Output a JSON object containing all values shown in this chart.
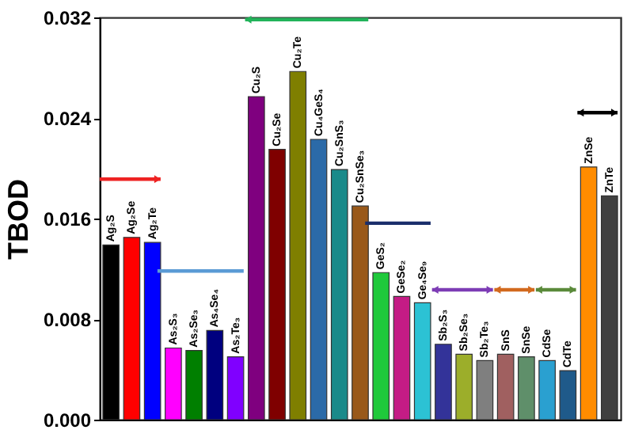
{
  "chart_data": {
    "type": "bar",
    "ylabel": "TBOD",
    "categories": [
      "Ag₂S",
      "Ag₂Se",
      "Ag₂Te",
      "As₂S₃",
      "As₂Se₃",
      "As₄Se₄",
      "As₂Te₃",
      "Cu₂S",
      "Cu₂Se",
      "Cu₂Te",
      "Cu₄GeS₄",
      "Cu₂SnS₃",
      "Cu₂SnSe₃",
      "GeS₂",
      "GeSe₂",
      "Ge₄Se₉",
      "Sb₂S₃",
      "Sb₂Se₃",
      "Sb₂Te₃",
      "SnS",
      "SnSe",
      "CdSe",
      "CdTe",
      "ZnSe",
      "ZnTe"
    ],
    "values": [
      0.0139,
      0.0145,
      0.0141,
      0.0057,
      0.0055,
      0.0071,
      0.005,
      0.0257,
      0.0215,
      0.0277,
      0.0223,
      0.0199,
      0.017,
      0.0117,
      0.0098,
      0.0093,
      0.006,
      0.0052,
      0.0047,
      0.0052,
      0.005,
      0.0047,
      0.0039,
      0.0201,
      0.0178
    ],
    "colors": [
      "#000000",
      "#ff0000",
      "#0000ff",
      "#ff00ff",
      "#007f00",
      "#00007f",
      "#8000ff",
      "#7f007f",
      "#7f0000",
      "#7f7f00",
      "#2b6aa8",
      "#1a8a8a",
      "#99591a",
      "#1fc93b",
      "#c41c85",
      "#2cc2d4",
      "#333399",
      "#9cae2a",
      "#7f7f7f",
      "#a06060",
      "#5f8f6a",
      "#2aa0d0",
      "#1f5a8a",
      "#ff8c00",
      "#404040"
    ],
    "ylim": [
      0,
      0.032
    ],
    "yticks": [
      {
        "value": 0,
        "label": "0.000"
      },
      {
        "value": 0.008,
        "label": "0.008"
      },
      {
        "value": 0.016,
        "label": "0.016"
      },
      {
        "value": 0.024,
        "label": "0.024"
      },
      {
        "value": 0.032,
        "label": "0.032"
      }
    ]
  }
}
